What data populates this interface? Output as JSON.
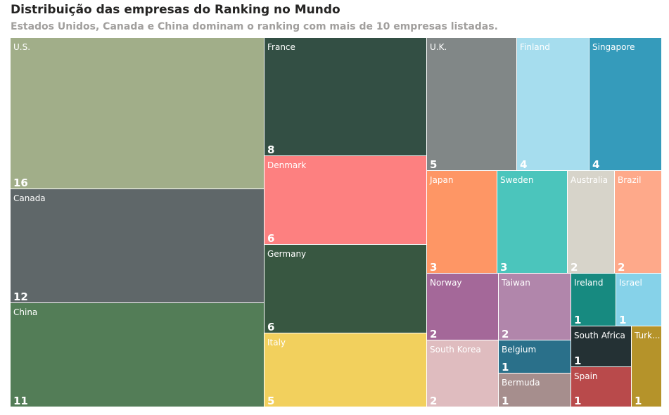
{
  "header": {
    "title": "Distribuição das empresas do Ranking no Mundo",
    "subtitle": "Estados Unidos, Canada e China dominam o ranking com mais de 10 empresas listadas."
  },
  "chart_data": {
    "type": "treemap",
    "value_label_color": "#ffffff",
    "items": [
      {
        "name": "U.S.",
        "value": 16,
        "color": "#a1ae89"
      },
      {
        "name": "Canada",
        "value": 12,
        "color": "#5f6769"
      },
      {
        "name": "China",
        "value": 11,
        "color": "#537d57"
      },
      {
        "name": "France",
        "value": 8,
        "color": "#334f44"
      },
      {
        "name": "Denmark",
        "value": 6,
        "color": "#fd8080"
      },
      {
        "name": "Germany",
        "value": 6,
        "color": "#385741"
      },
      {
        "name": "Italy",
        "value": 5,
        "color": "#f2d05d"
      },
      {
        "name": "U.K.",
        "value": 5,
        "color": "#818787"
      },
      {
        "name": "Finland",
        "value": 4,
        "color": "#a6ddee"
      },
      {
        "name": "Singapore",
        "value": 4,
        "color": "#359bbb"
      },
      {
        "name": "Japan",
        "value": 3,
        "color": "#fe9665"
      },
      {
        "name": "Sweden",
        "value": 3,
        "color": "#4bc5bc"
      },
      {
        "name": "Australia",
        "value": 2,
        "color": "#d7d4ca"
      },
      {
        "name": "Brazil",
        "value": 2,
        "color": "#fea98a"
      },
      {
        "name": "Norway",
        "value": 2,
        "color": "#a46899"
      },
      {
        "name": "Taiwan",
        "value": 2,
        "color": "#b186ab"
      },
      {
        "name": "South Korea",
        "value": 2,
        "color": "#dfbcbf"
      },
      {
        "name": "Ireland",
        "value": 1,
        "color": "#178a80"
      },
      {
        "name": "Israel",
        "value": 1,
        "color": "#86d2e9"
      },
      {
        "name": "South Africa",
        "value": 1,
        "color": "#243134"
      },
      {
        "name": "Belgium",
        "value": 1,
        "color": "#2a708a"
      },
      {
        "name": "Bermuda",
        "value": 1,
        "color": "#a68e8d"
      },
      {
        "name": "Spain",
        "value": 1,
        "color": "#b94a4b"
      },
      {
        "name": "Turk...",
        "value": 1,
        "color": "#b5932a"
      }
    ]
  }
}
